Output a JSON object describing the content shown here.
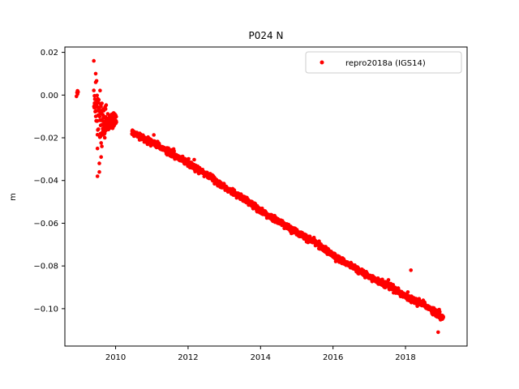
{
  "chart_data": {
    "type": "scatter",
    "title": "P024 N",
    "xlabel": "",
    "ylabel": "m",
    "xlim": [
      2008.6,
      2019.7
    ],
    "ylim": [
      -0.1175,
      0.0225
    ],
    "x_ticks": [
      2010,
      2012,
      2014,
      2016,
      2018
    ],
    "x_tick_labels": [
      "2010",
      "2012",
      "2014",
      "2016",
      "2018"
    ],
    "y_ticks": [
      0.02,
      0.0,
      -0.02,
      -0.04,
      -0.06,
      -0.08,
      -0.1
    ],
    "y_tick_labels": [
      "0.02",
      "0.00",
      "−0.02",
      "−0.04",
      "−0.06",
      "−0.08",
      "−0.10"
    ],
    "grid": false,
    "legend_position": "top-right",
    "marker_color": "#ff0000",
    "series": [
      {
        "name": "repro2018a (IGS14)",
        "color": "#ff0000",
        "trend": {
          "x": [
            2008.9,
            2009.0,
            2009.4,
            2009.6,
            2009.8,
            2010.0,
            2010.5,
            2011.0,
            2011.5,
            2012.0,
            2012.5,
            2013.0,
            2013.5,
            2014.0,
            2014.5,
            2015.0,
            2015.5,
            2016.0,
            2016.5,
            2017.0,
            2017.5,
            2018.0,
            2018.5,
            2019.0
          ],
          "y": [
            0.001,
            0.0,
            -0.004,
            -0.012,
            -0.013,
            -0.012,
            -0.018,
            -0.022,
            -0.027,
            -0.032,
            -0.037,
            -0.043,
            -0.048,
            -0.054,
            -0.059,
            -0.064,
            -0.069,
            -0.075,
            -0.08,
            -0.085,
            -0.089,
            -0.094,
            -0.098,
            -0.104
          ]
        },
        "outliers": {
          "x": [
            2009.4,
            2009.45,
            2009.5,
            2009.55,
            2009.6,
            2009.62,
            2009.55,
            2009.45,
            2009.5,
            2018.15,
            2018.9,
            2008.95,
            2009.7
          ],
          "y": [
            0.016,
            0.01,
            -0.025,
            -0.032,
            -0.029,
            -0.024,
            -0.036,
            0.006,
            -0.038,
            -0.082,
            -0.111,
            0.002,
            -0.02
          ]
        },
        "scatter_std_early": 0.008,
        "scatter_std": 0.0012
      }
    ]
  }
}
